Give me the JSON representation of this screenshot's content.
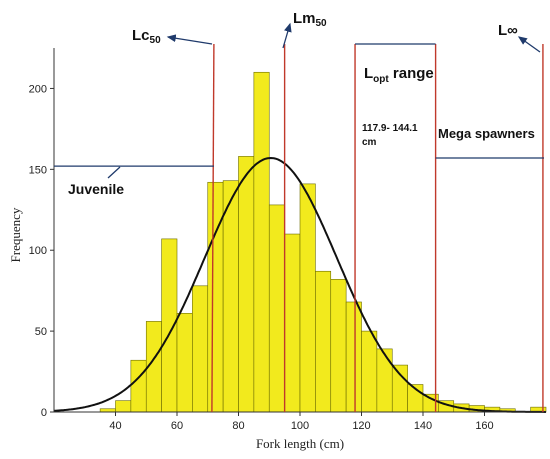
{
  "chart_data": {
    "type": "bar",
    "xlabel": "Fork length (cm)",
    "ylabel": "Frequency",
    "xlim": [
      20,
      180
    ],
    "ylim": [
      0,
      225
    ],
    "x_ticks": [
      "40",
      "60",
      "80",
      "100",
      "120",
      "140",
      "160"
    ],
    "y_ticks": [
      "0",
      "50",
      "100",
      "150",
      "200"
    ],
    "bin_width": 5,
    "bins": [
      {
        "start": 35,
        "value": 2
      },
      {
        "start": 40,
        "value": 7
      },
      {
        "start": 45,
        "value": 32
      },
      {
        "start": 50,
        "value": 56
      },
      {
        "start": 55,
        "value": 107
      },
      {
        "start": 60,
        "value": 61
      },
      {
        "start": 65,
        "value": 78
      },
      {
        "start": 70,
        "value": 142
      },
      {
        "start": 75,
        "value": 143
      },
      {
        "start": 80,
        "value": 158
      },
      {
        "start": 85,
        "value": 210
      },
      {
        "start": 90,
        "value": 128
      },
      {
        "start": 95,
        "value": 110
      },
      {
        "start": 100,
        "value": 141
      },
      {
        "start": 105,
        "value": 87
      },
      {
        "start": 110,
        "value": 82
      },
      {
        "start": 115,
        "value": 68
      },
      {
        "start": 120,
        "value": 50
      },
      {
        "start": 125,
        "value": 39
      },
      {
        "start": 130,
        "value": 29
      },
      {
        "start": 135,
        "value": 17
      },
      {
        "start": 140,
        "value": 11
      },
      {
        "start": 145,
        "value": 7
      },
      {
        "start": 150,
        "value": 5
      },
      {
        "start": 155,
        "value": 4
      },
      {
        "start": 160,
        "value": 3
      },
      {
        "start": 165,
        "value": 2
      },
      {
        "start": 175,
        "value": 3
      }
    ],
    "normal_curve": {
      "mean": 90.5,
      "sd": 21.5,
      "peak": 157
    },
    "grid": false,
    "colors": {
      "bar_fill": "#f2ea1d",
      "bar_stroke": "#6b6b00",
      "vertical_lines": "#c0392b",
      "curve": "#111111",
      "arrows": "#1f3a6b"
    },
    "markers": [
      {
        "label": "Lc",
        "sub": "50",
        "x": 72
      },
      {
        "label": "Lm",
        "sub": "50",
        "x": 95
      },
      {
        "label": "L",
        "sub": "opt",
        "x": 117.9
      },
      {
        "label": "",
        "sub": "",
        "x": 144.1
      },
      {
        "label": "L∞",
        "sub": "",
        "x": 179
      }
    ],
    "annotations": {
      "lc50_main": "Lc",
      "lc50_sub": "50",
      "lm50_main": "Lm",
      "lm50_sub": "50",
      "lopt_main": "L",
      "lopt_sub": "opt",
      "lopt_rest": " range",
      "lopt_value_1": "117.9- 144.1",
      "lopt_value_2": "cm",
      "linf": "L∞",
      "juvenile": "Juvenile",
      "mega": "Mega spawners"
    },
    "juvenile_line_y": 152,
    "mega_line_y": 157
  }
}
